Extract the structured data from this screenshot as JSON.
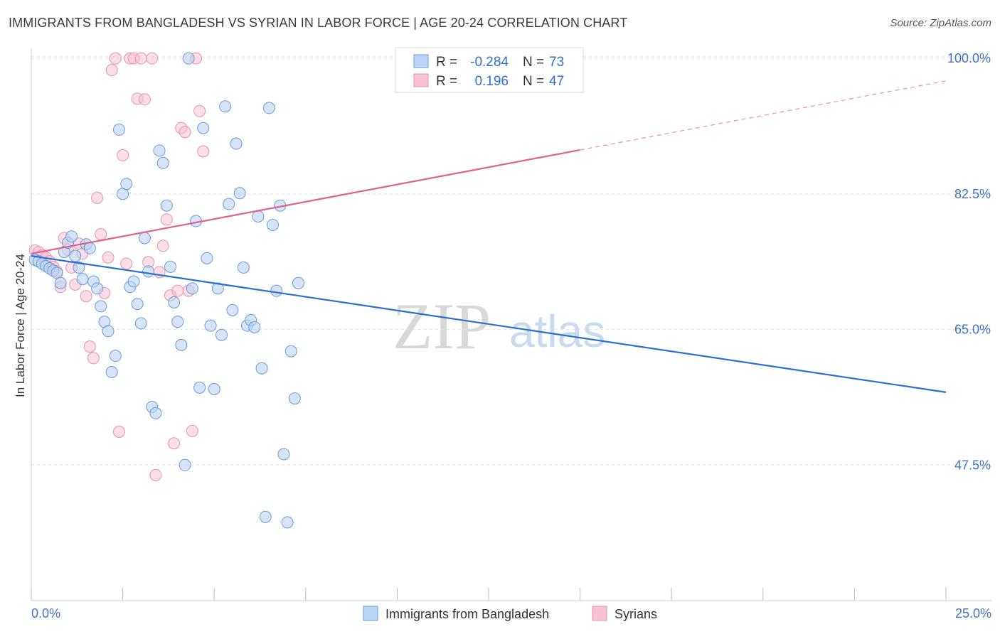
{
  "page": {
    "title": "IMMIGRANTS FROM BANGLADESH VS SYRIAN IN LABOR FORCE | AGE 20-24 CORRELATION CHART",
    "source": "Source: ZipAtlas.com"
  },
  "legend_box": {
    "rows": [
      {
        "r_label": "R =",
        "r_value": "-0.284",
        "n_label": "N =",
        "n_value": "73"
      },
      {
        "r_label": "R =",
        "r_value": "0.196",
        "n_label": "N =",
        "n_value": "47"
      }
    ]
  },
  "bottom_legend": [
    "Immigrants from Bangladesh",
    "Syrians"
  ],
  "watermark": {
    "zip": "ZIP",
    "atlas": "atlas"
  },
  "colors": {
    "bangladesh_fill": "#b9d3f2",
    "bangladesh_stroke": "#6b9ad8",
    "bangladesh_line": "#2a6fd0",
    "syrians_fill": "#f7c3d3",
    "syrians_stroke": "#e592ad",
    "syrians_line": "#e0608f",
    "tick_text": "#3d72c8",
    "grid": "#e2e2e2"
  },
  "chart_data": {
    "type": "scatter",
    "title": "IMMIGRANTS FROM BANGLADESH VS SYRIAN IN LABOR FORCE | AGE 20-24 CORRELATION CHART",
    "xlabel": "",
    "ylabel": "In Labor Force | Age 20-24",
    "xlim": [
      0,
      25
    ],
    "ylim": [
      30,
      101.3
    ],
    "x_tick_labels": [
      "0.0%",
      "25.0%"
    ],
    "y_ticks": [
      47.5,
      65.0,
      82.5,
      100.0
    ],
    "y_tick_labels": [
      "47.5%",
      "65.0%",
      "82.5%",
      "100.0%"
    ],
    "grid": "horizontal dashed",
    "legend_placement": "bottom",
    "series": [
      {
        "name": "Immigrants from Bangladesh",
        "R": -0.284,
        "N": 73,
        "trend": {
          "x0": 0,
          "y0": 74.5,
          "x1": 25,
          "y1": 56.9
        },
        "points": [
          [
            0.1,
            74.0
          ],
          [
            0.2,
            73.8
          ],
          [
            0.3,
            73.5
          ],
          [
            0.4,
            73.2
          ],
          [
            0.5,
            72.9
          ],
          [
            0.6,
            72.6
          ],
          [
            0.7,
            72.3
          ],
          [
            0.8,
            71.0
          ],
          [
            0.9,
            75.0
          ],
          [
            1.0,
            76.2
          ],
          [
            1.1,
            77.0
          ],
          [
            1.2,
            74.5
          ],
          [
            1.3,
            73.0
          ],
          [
            1.4,
            71.5
          ],
          [
            1.5,
            76.0
          ],
          [
            1.6,
            75.5
          ],
          [
            1.7,
            71.2
          ],
          [
            1.8,
            70.3
          ],
          [
            1.9,
            68.0
          ],
          [
            2.0,
            66.0
          ],
          [
            2.1,
            64.8
          ],
          [
            2.2,
            59.5
          ],
          [
            2.3,
            61.6
          ],
          [
            2.4,
            90.8
          ],
          [
            2.5,
            82.5
          ],
          [
            2.6,
            83.8
          ],
          [
            2.7,
            70.5
          ],
          [
            2.8,
            71.2
          ],
          [
            2.9,
            68.3
          ],
          [
            3.0,
            65.8
          ],
          [
            3.1,
            76.8
          ],
          [
            3.2,
            72.5
          ],
          [
            3.3,
            55.0
          ],
          [
            3.4,
            54.2
          ],
          [
            3.5,
            88.1
          ],
          [
            3.6,
            86.5
          ],
          [
            3.7,
            81.0
          ],
          [
            3.8,
            73.1
          ],
          [
            3.9,
            68.5
          ],
          [
            4.0,
            66.0
          ],
          [
            4.1,
            63.0
          ],
          [
            4.2,
            47.5
          ],
          [
            4.3,
            100.0
          ],
          [
            4.4,
            70.3
          ],
          [
            4.5,
            79.0
          ],
          [
            4.6,
            57.5
          ],
          [
            4.7,
            91.0
          ],
          [
            4.8,
            74.2
          ],
          [
            4.9,
            65.5
          ],
          [
            5.0,
            57.3
          ],
          [
            5.1,
            70.3
          ],
          [
            5.2,
            64.3
          ],
          [
            5.3,
            93.8
          ],
          [
            5.4,
            81.2
          ],
          [
            5.5,
            67.5
          ],
          [
            5.6,
            89.0
          ],
          [
            5.7,
            82.6
          ],
          [
            5.8,
            73.0
          ],
          [
            5.9,
            65.5
          ],
          [
            6.0,
            66.2
          ],
          [
            6.1,
            65.3
          ],
          [
            6.2,
            79.6
          ],
          [
            6.3,
            60.0
          ],
          [
            6.4,
            40.8
          ],
          [
            6.5,
            93.6
          ],
          [
            6.6,
            78.5
          ],
          [
            6.7,
            70.0
          ],
          [
            6.8,
            81.0
          ],
          [
            6.9,
            48.9
          ],
          [
            7.0,
            40.1
          ],
          [
            7.1,
            62.2
          ],
          [
            7.2,
            56.1
          ],
          [
            7.3,
            71.0
          ]
        ]
      },
      {
        "name": "Syrians",
        "R": 0.196,
        "N": 47,
        "trend": {
          "x0": 0,
          "y0": 74.8,
          "x1": 25,
          "y1": 97.1
        },
        "points": [
          [
            0.1,
            75.2
          ],
          [
            0.2,
            75.0
          ],
          [
            0.3,
            74.6
          ],
          [
            0.4,
            74.3
          ],
          [
            0.5,
            73.8
          ],
          [
            0.6,
            73.1
          ],
          [
            0.7,
            72.5
          ],
          [
            0.8,
            70.5
          ],
          [
            0.9,
            76.8
          ],
          [
            1.0,
            75.3
          ],
          [
            1.1,
            73.0
          ],
          [
            1.2,
            70.8
          ],
          [
            1.3,
            76.1
          ],
          [
            1.4,
            74.8
          ],
          [
            1.5,
            69.3
          ],
          [
            1.6,
            62.8
          ],
          [
            1.7,
            61.3
          ],
          [
            1.8,
            82.0
          ],
          [
            1.9,
            77.3
          ],
          [
            2.0,
            69.7
          ],
          [
            2.1,
            74.3
          ],
          [
            2.2,
            98.5
          ],
          [
            2.3,
            100.0
          ],
          [
            2.4,
            51.8
          ],
          [
            2.5,
            87.5
          ],
          [
            2.6,
            73.5
          ],
          [
            2.7,
            100.0
          ],
          [
            2.8,
            100.0
          ],
          [
            2.9,
            94.8
          ],
          [
            3.0,
            100.0
          ],
          [
            3.1,
            94.7
          ],
          [
            3.2,
            73.7
          ],
          [
            3.3,
            100.0
          ],
          [
            3.4,
            46.2
          ],
          [
            3.5,
            72.4
          ],
          [
            3.6,
            75.8
          ],
          [
            3.7,
            79.2
          ],
          [
            3.8,
            69.4
          ],
          [
            3.9,
            50.3
          ],
          [
            4.0,
            70.0
          ],
          [
            4.1,
            91.0
          ],
          [
            4.2,
            90.5
          ],
          [
            4.3,
            70.0
          ],
          [
            4.4,
            51.9
          ],
          [
            4.5,
            100.0
          ],
          [
            4.6,
            93.2
          ],
          [
            4.7,
            88.0
          ]
        ]
      }
    ]
  }
}
